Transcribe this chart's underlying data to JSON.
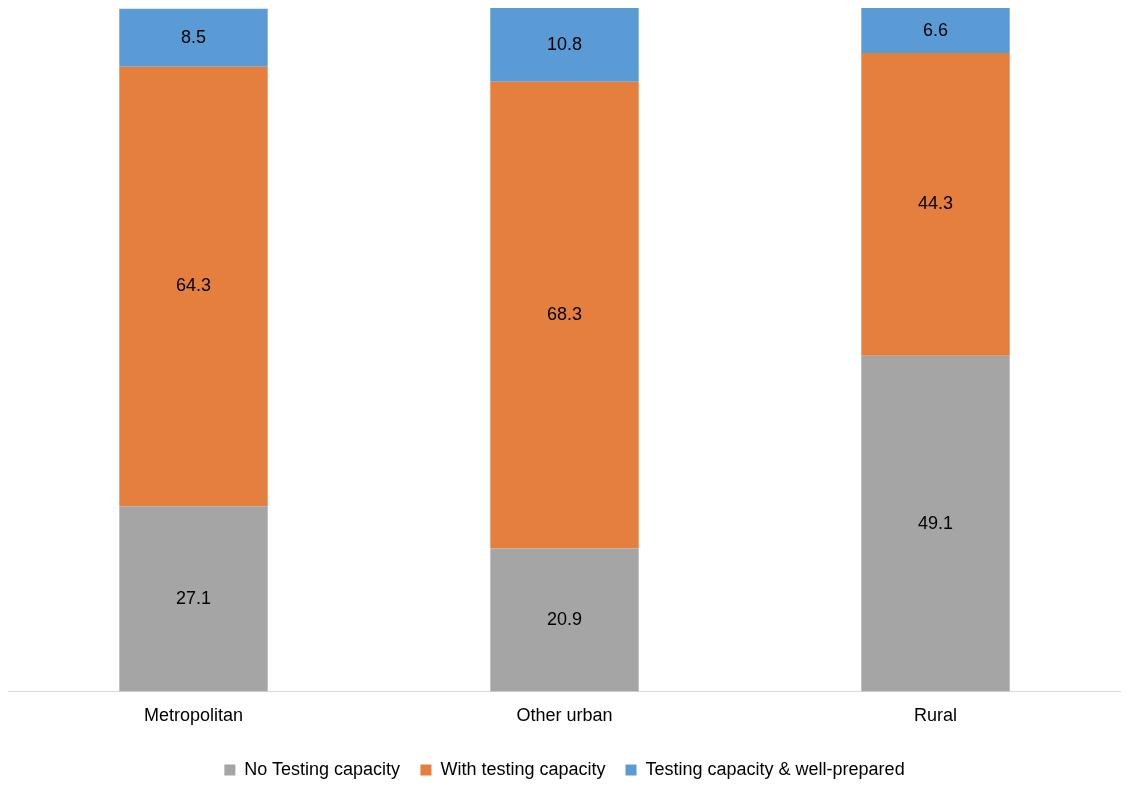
{
  "chart_data": {
    "type": "bar",
    "stacked": true,
    "categories": [
      "Metropolitan",
      "Other urban",
      "Rural"
    ],
    "series": [
      {
        "name": "No Testing capacity",
        "color": "#a5a5a5",
        "values": [
          27.1,
          20.9,
          49.1
        ]
      },
      {
        "name": "With testing capacity",
        "color": "#e57f3e",
        "values": [
          64.3,
          68.3,
          44.3
        ]
      },
      {
        "name": "Testing capacity & well-prepared",
        "color": "#5b9bd5",
        "values": [
          8.5,
          10.8,
          6.6
        ]
      }
    ],
    "ylim": [
      0,
      100
    ],
    "tick_labels": "x",
    "grid": false,
    "legend": "bottom",
    "data_labels": true
  }
}
